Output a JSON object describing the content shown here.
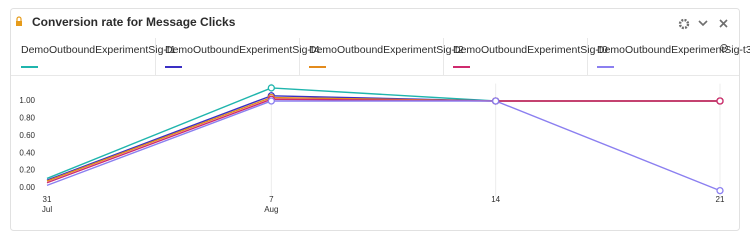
{
  "chart_data": {
    "type": "line",
    "title": "Conversion rate for Message Clicks",
    "categories": [
      "31",
      "7",
      "14",
      "21"
    ],
    "category_months": [
      "Jul",
      "Aug",
      null,
      null
    ],
    "series": [
      {
        "name": "DemoOutboundExperimentSig-t1",
        "color": "#1fb5ad",
        "values": [
          0.11,
          1.15,
          1.0,
          1.0
        ]
      },
      {
        "name": "DemoOutboundExperimentSig-t4",
        "color": "#3a2fc4",
        "values": [
          0.09,
          1.06,
          1.0,
          1.0
        ]
      },
      {
        "name": "DemoOutboundExperimentSig-t2",
        "color": "#e38b1c",
        "values": [
          0.08,
          1.04,
          1.0,
          1.0
        ]
      },
      {
        "name": "DemoOutboundExperimentSig-t0",
        "color": "#cf2a6e",
        "values": [
          0.06,
          1.02,
          1.0,
          1.0
        ]
      },
      {
        "name": "DemoOutboundExperimentSig-t3",
        "color": "#8b7ff0",
        "values": [
          0.03,
          1.0,
          1.0,
          -0.03
        ]
      }
    ],
    "ylim": [
      -0.1,
      1.2
    ],
    "yticks": [
      {
        "value": 0,
        "label": "0.00"
      },
      {
        "value": 0.2,
        "label": "0.20"
      },
      {
        "value": 0.4,
        "label": "0.40"
      },
      {
        "value": 0.6,
        "label": "0.60"
      },
      {
        "value": 0.8,
        "label": "0.80"
      },
      {
        "value": 1,
        "label": "1.00"
      }
    ],
    "grid": true
  }
}
